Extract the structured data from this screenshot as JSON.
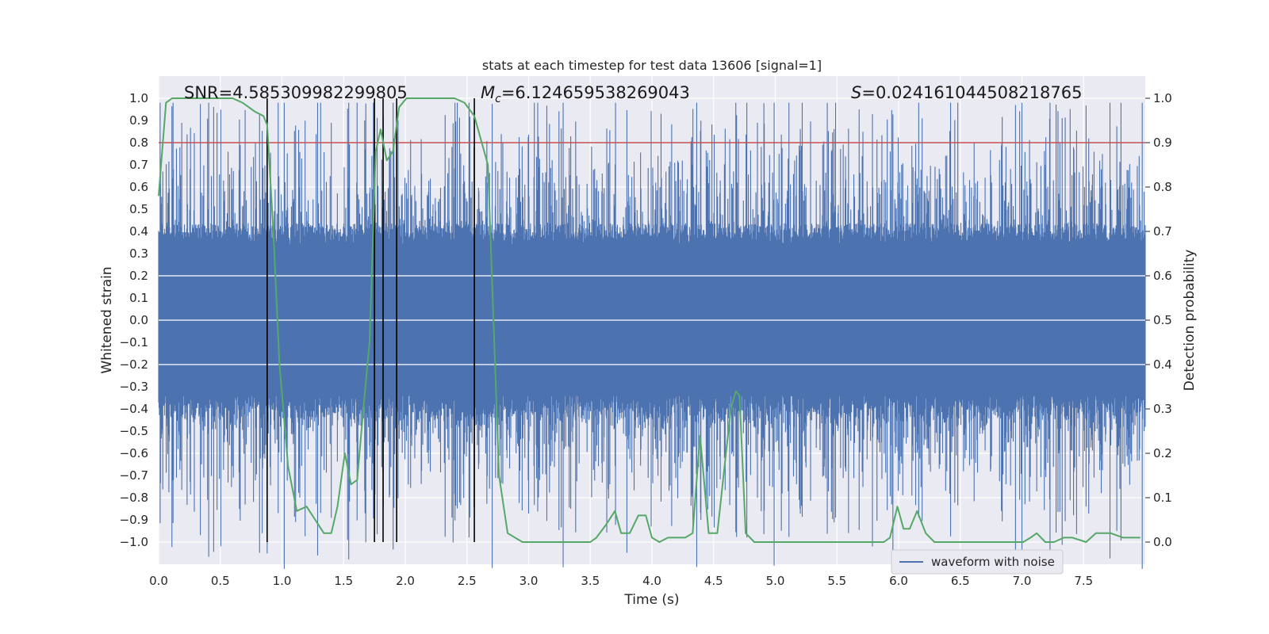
{
  "chart_data": {
    "type": "line",
    "title": "stats at each timestep for test data 13606 [signal=1]",
    "xlabel": "Time (s)",
    "ylabel_left": "Whitened strain",
    "ylabel_right": "Detection probability",
    "xlim": [
      0.0,
      8.0
    ],
    "ylim_left": [
      -1.1,
      1.1
    ],
    "ylim_right": [
      -0.05,
      1.05
    ],
    "grid": true,
    "legend_position": "lower-right",
    "x_ticks": [
      "0.0",
      "0.5",
      "1.0",
      "1.5",
      "2.0",
      "2.5",
      "3.0",
      "3.5",
      "4.0",
      "4.5",
      "5.0",
      "5.5",
      "6.0",
      "6.5",
      "7.0",
      "7.5"
    ],
    "y_left_ticks": [
      "1.0",
      "0.9",
      "0.8",
      "0.7",
      "0.6",
      "0.5",
      "0.4",
      "0.3",
      "0.2",
      "0.1",
      "0.0",
      "−0.1",
      "−0.2",
      "−0.3",
      "−0.4",
      "−0.5",
      "−0.6",
      "−0.7",
      "−0.8",
      "−0.9",
      "−1.0"
    ],
    "y_right_ticks": [
      "1.0",
      "0.9",
      "0.8",
      "0.7",
      "0.6",
      "0.5",
      "0.4",
      "0.3",
      "0.2",
      "0.1",
      "0.0"
    ],
    "annotations": {
      "snr_label": "SNR=4.585309982299805",
      "mc_symbol": "M",
      "mc_subscript": "c",
      "mc_value": "=6.124659538269043",
      "s_symbol": "S",
      "s_value": "=0.024161044508218765"
    },
    "threshold_prob": 0.9,
    "vertical_lines_s": [
      0.88,
      1.75,
      1.82,
      1.93,
      2.56
    ],
    "series": [
      {
        "name": "waveform with noise",
        "color": "#4c72b0",
        "kind": "dense-noise",
        "duration_s": 8.0,
        "core_amplitude": 0.38,
        "peak_amplitude": 1.0
      },
      {
        "color": "#55a868",
        "kind": "probability",
        "x": [
          0.0,
          0.06,
          0.11,
          0.3,
          0.5,
          0.6,
          0.68,
          0.78,
          0.85,
          0.88,
          0.93,
          0.98,
          1.05,
          1.12,
          1.2,
          1.27,
          1.34,
          1.4,
          1.45,
          1.51,
          1.56,
          1.61,
          1.66,
          1.71,
          1.76,
          1.8,
          1.85,
          1.9,
          1.95,
          2.01,
          2.07,
          2.25,
          2.4,
          2.48,
          2.56,
          2.62,
          2.67,
          2.76,
          2.83,
          2.95,
          3.0,
          3.2,
          3.4,
          3.5,
          3.55,
          3.63,
          3.7,
          3.75,
          3.82,
          3.89,
          3.95,
          4.0,
          4.06,
          4.13,
          4.2,
          4.27,
          4.33,
          4.39,
          4.46,
          4.53,
          4.6,
          4.64,
          4.68,
          4.71,
          4.76,
          4.83,
          4.94,
          5.2,
          5.4,
          5.7,
          5.8,
          5.88,
          5.93,
          5.99,
          6.04,
          6.09,
          6.15,
          6.22,
          6.29,
          6.5,
          6.75,
          6.95,
          7.01,
          7.07,
          7.12,
          7.19,
          7.26,
          7.34,
          7.41,
          7.52,
          7.6,
          7.67,
          7.72,
          7.82,
          7.9,
          7.96
        ],
        "y": [
          0.78,
          0.99,
          1.0,
          1.0,
          1.0,
          1.0,
          0.99,
          0.97,
          0.96,
          0.94,
          0.7,
          0.4,
          0.17,
          0.07,
          0.08,
          0.05,
          0.02,
          0.02,
          0.08,
          0.2,
          0.13,
          0.14,
          0.3,
          0.45,
          0.88,
          0.93,
          0.86,
          0.88,
          0.98,
          1.0,
          1.0,
          1.0,
          1.0,
          0.99,
          0.96,
          0.9,
          0.85,
          0.15,
          0.02,
          0.0,
          0.0,
          0.0,
          0.0,
          0.0,
          0.01,
          0.04,
          0.07,
          0.02,
          0.02,
          0.06,
          0.06,
          0.01,
          0.0,
          0.01,
          0.01,
          0.01,
          0.02,
          0.24,
          0.02,
          0.02,
          0.2,
          0.3,
          0.34,
          0.33,
          0.02,
          0.0,
          0.0,
          0.0,
          0.0,
          0.0,
          0.0,
          0.0,
          0.01,
          0.08,
          0.03,
          0.03,
          0.07,
          0.02,
          0.0,
          0.0,
          0.0,
          0.0,
          0.0,
          0.01,
          0.02,
          0.0,
          0.0,
          0.01,
          0.01,
          0.0,
          0.02,
          0.02,
          0.02,
          0.01,
          0.01,
          0.01
        ]
      }
    ]
  }
}
